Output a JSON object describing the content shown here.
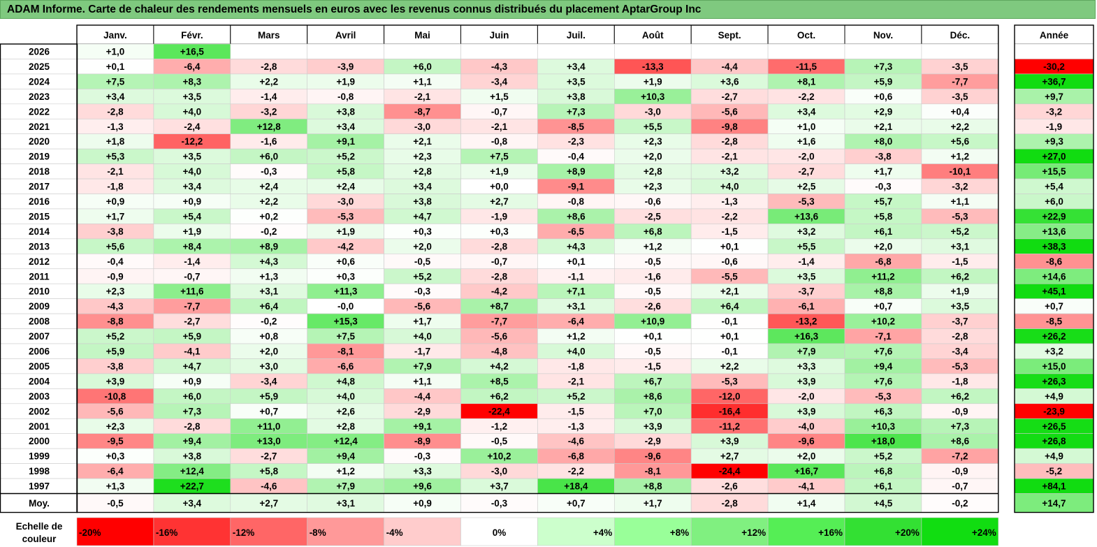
{
  "title": "ADAM Informe. Carte de chaleur des rendements mensuels en euros avec les revenus connus distribués du placement AptarGroup Inc",
  "chart_data": {
    "type": "heatmap",
    "months": [
      "Janv.",
      "Févr.",
      "Mars",
      "Avril",
      "Mai",
      "Juin",
      "Juil.",
      "Août",
      "Sept.",
      "Oct.",
      "Nov.",
      "Déc."
    ],
    "year_label": "Année",
    "avg_label": "Moy.",
    "rows": [
      {
        "year": "2026",
        "values": [
          1.0,
          16.5,
          null,
          null,
          null,
          null,
          null,
          null,
          null,
          null,
          null,
          null
        ],
        "labels": [
          "+1,0",
          "+16,5",
          "",
          "",
          "",
          "",
          "",
          "",
          "",
          "",
          "",
          ""
        ],
        "annual": null,
        "annual_label": ""
      },
      {
        "year": "2025",
        "values": [
          0.1,
          -6.4,
          -2.8,
          -3.9,
          6.0,
          -4.3,
          3.4,
          -13.3,
          -4.4,
          -11.5,
          7.3,
          -3.5
        ],
        "labels": [
          "+0,1",
          "-6,4",
          "-2,8",
          "-3,9",
          "+6,0",
          "-4,3",
          "+3,4",
          "-13,3",
          "-4,4",
          "-11,5",
          "+7,3",
          "-3,5"
        ],
        "annual": -30.2,
        "annual_label": "-30,2"
      },
      {
        "year": "2024",
        "values": [
          7.5,
          8.3,
          2.2,
          1.9,
          1.1,
          -3.4,
          3.5,
          1.9,
          3.6,
          8.1,
          5.9,
          -7.7
        ],
        "labels": [
          "+7,5",
          "+8,3",
          "+2,2",
          "+1,9",
          "+1,1",
          "-3,4",
          "+3,5",
          "+1,9",
          "+3,6",
          "+8,1",
          "+5,9",
          "-7,7"
        ],
        "annual": 36.7,
        "annual_label": "+36,7"
      },
      {
        "year": "2023",
        "values": [
          3.4,
          3.5,
          -1.4,
          -0.8,
          -2.1,
          1.5,
          3.8,
          10.3,
          -2.7,
          -2.2,
          0.6,
          -3.5
        ],
        "labels": [
          "+3,4",
          "+3,5",
          "-1,4",
          "-0,8",
          "-2,1",
          "+1,5",
          "+3,8",
          "+10,3",
          "-2,7",
          "-2,2",
          "+0,6",
          "-3,5"
        ],
        "annual": 9.7,
        "annual_label": "+9,7"
      },
      {
        "year": "2022",
        "values": [
          -2.8,
          4.0,
          -3.2,
          3.8,
          -8.7,
          -0.7,
          7.3,
          -3.0,
          -5.6,
          3.4,
          2.9,
          0.4
        ],
        "labels": [
          "-2,8",
          "+4,0",
          "-3,2",
          "+3,8",
          "-8,7",
          "-0,7",
          "+7,3",
          "-3,0",
          "-5,6",
          "+3,4",
          "+2,9",
          "+0,4"
        ],
        "annual": -3.2,
        "annual_label": "-3,2"
      },
      {
        "year": "2021",
        "values": [
          -1.3,
          -2.4,
          12.8,
          3.4,
          -3.0,
          -2.1,
          -8.5,
          5.5,
          -9.8,
          1.0,
          2.1,
          2.2
        ],
        "labels": [
          "-1,3",
          "-2,4",
          "+12,8",
          "+3,4",
          "-3,0",
          "-2,1",
          "-8,5",
          "+5,5",
          "-9,8",
          "+1,0",
          "+2,1",
          "+2,2"
        ],
        "annual": -1.9,
        "annual_label": "-1,9"
      },
      {
        "year": "2020",
        "values": [
          1.8,
          -12.2,
          -1.6,
          9.1,
          2.1,
          -0.8,
          -2.3,
          2.3,
          -2.8,
          1.6,
          8.0,
          5.6
        ],
        "labels": [
          "+1,8",
          "-12,2",
          "-1,6",
          "+9,1",
          "+2,1",
          "-0,8",
          "-2,3",
          "+2,3",
          "-2,8",
          "+1,6",
          "+8,0",
          "+5,6"
        ],
        "annual": 9.3,
        "annual_label": "+9,3"
      },
      {
        "year": "2019",
        "values": [
          5.3,
          3.5,
          6.0,
          5.2,
          2.3,
          7.5,
          -0.4,
          2.0,
          -2.1,
          -2.0,
          -3.8,
          1.2
        ],
        "labels": [
          "+5,3",
          "+3,5",
          "+6,0",
          "+5,2",
          "+2,3",
          "+7,5",
          "-0,4",
          "+2,0",
          "-2,1",
          "-2,0",
          "-3,8",
          "+1,2"
        ],
        "annual": 27.0,
        "annual_label": "+27,0"
      },
      {
        "year": "2018",
        "values": [
          -2.1,
          4.0,
          -0.3,
          5.8,
          2.8,
          1.9,
          8.9,
          2.8,
          3.2,
          -2.7,
          1.7,
          -10.1
        ],
        "labels": [
          "-2,1",
          "+4,0",
          "-0,3",
          "+5,8",
          "+2,8",
          "+1,9",
          "+8,9",
          "+2,8",
          "+3,2",
          "-2,7",
          "+1,7",
          "-10,1"
        ],
        "annual": 15.5,
        "annual_label": "+15,5"
      },
      {
        "year": "2017",
        "values": [
          -1.8,
          3.4,
          2.4,
          2.4,
          3.4,
          0.0,
          -9.1,
          2.3,
          4.0,
          2.5,
          -0.3,
          -3.2
        ],
        "labels": [
          "-1,8",
          "+3,4",
          "+2,4",
          "+2,4",
          "+3,4",
          "+0,0",
          "-9,1",
          "+2,3",
          "+4,0",
          "+2,5",
          "-0,3",
          "-3,2"
        ],
        "annual": 5.4,
        "annual_label": "+5,4"
      },
      {
        "year": "2016",
        "values": [
          0.9,
          0.9,
          2.2,
          -3.0,
          3.8,
          2.7,
          -0.8,
          -0.6,
          -1.3,
          -5.3,
          5.7,
          1.1
        ],
        "labels": [
          "+0,9",
          "+0,9",
          "+2,2",
          "-3,0",
          "+3,8",
          "+2,7",
          "-0,8",
          "-0,6",
          "-1,3",
          "-5,3",
          "+5,7",
          "+1,1"
        ],
        "annual": 6.0,
        "annual_label": "+6,0"
      },
      {
        "year": "2015",
        "values": [
          1.7,
          5.4,
          0.2,
          -5.3,
          4.7,
          -1.9,
          8.6,
          -2.5,
          -2.2,
          13.6,
          5.8,
          -5.3
        ],
        "labels": [
          "+1,7",
          "+5,4",
          "+0,2",
          "-5,3",
          "+4,7",
          "-1,9",
          "+8,6",
          "-2,5",
          "-2,2",
          "+13,6",
          "+5,8",
          "-5,3"
        ],
        "annual": 22.9,
        "annual_label": "+22,9"
      },
      {
        "year": "2014",
        "values": [
          -3.8,
          1.9,
          -0.2,
          1.9,
          0.3,
          0.3,
          -6.5,
          6.8,
          -1.5,
          3.2,
          6.1,
          5.2
        ],
        "labels": [
          "-3,8",
          "+1,9",
          "-0,2",
          "+1,9",
          "+0,3",
          "+0,3",
          "-6,5",
          "+6,8",
          "-1,5",
          "+3,2",
          "+6,1",
          "+5,2"
        ],
        "annual": 13.6,
        "annual_label": "+13,6"
      },
      {
        "year": "2013",
        "values": [
          5.6,
          8.4,
          8.9,
          -4.2,
          2.0,
          -2.8,
          4.3,
          1.2,
          0.1,
          5.5,
          2.0,
          3.1
        ],
        "labels": [
          "+5,6",
          "+8,4",
          "+8,9",
          "-4,2",
          "+2,0",
          "-2,8",
          "+4,3",
          "+1,2",
          "+0,1",
          "+5,5",
          "+2,0",
          "+3,1"
        ],
        "annual": 38.3,
        "annual_label": "+38,3"
      },
      {
        "year": "2012",
        "values": [
          -0.4,
          -1.4,
          4.3,
          0.6,
          -0.5,
          -0.7,
          0.1,
          -0.5,
          -0.6,
          -1.4,
          -6.8,
          -1.5
        ],
        "labels": [
          "-0,4",
          "-1,4",
          "+4,3",
          "+0,6",
          "-0,5",
          "-0,7",
          "+0,1",
          "-0,5",
          "-0,6",
          "-1,4",
          "-6,8",
          "-1,5"
        ],
        "annual": -8.6,
        "annual_label": "-8,6"
      },
      {
        "year": "2011",
        "values": [
          -0.9,
          -0.7,
          1.3,
          0.3,
          5.2,
          -2.8,
          -1.1,
          -1.6,
          -5.5,
          3.5,
          11.2,
          6.2
        ],
        "labels": [
          "-0,9",
          "-0,7",
          "+1,3",
          "+0,3",
          "+5,2",
          "-2,8",
          "-1,1",
          "-1,6",
          "-5,5",
          "+3,5",
          "+11,2",
          "+6,2"
        ],
        "annual": 14.6,
        "annual_label": "+14,6"
      },
      {
        "year": "2010",
        "values": [
          2.3,
          11.6,
          3.1,
          11.3,
          -0.3,
          -4.2,
          7.1,
          -0.5,
          2.1,
          -3.7,
          8.8,
          1.9
        ],
        "labels": [
          "+2,3",
          "+11,6",
          "+3,1",
          "+11,3",
          "-0,3",
          "-4,2",
          "+7,1",
          "-0,5",
          "+2,1",
          "-3,7",
          "+8,8",
          "+1,9"
        ],
        "annual": 45.1,
        "annual_label": "+45,1"
      },
      {
        "year": "2009",
        "values": [
          -4.3,
          -7.7,
          6.4,
          -0.0,
          -5.6,
          8.7,
          3.1,
          -2.6,
          6.4,
          -6.1,
          0.7,
          3.5
        ],
        "labels": [
          "-4,3",
          "-7,7",
          "+6,4",
          "-0,0",
          "-5,6",
          "+8,7",
          "+3,1",
          "-2,6",
          "+6,4",
          "-6,1",
          "+0,7",
          "+3,5"
        ],
        "annual": 0.7,
        "annual_label": "+0,7"
      },
      {
        "year": "2008",
        "values": [
          -8.8,
          -2.7,
          -0.2,
          15.3,
          1.7,
          -7.7,
          -6.4,
          10.9,
          -0.1,
          -13.2,
          10.2,
          -3.7
        ],
        "labels": [
          "-8,8",
          "-2,7",
          "-0,2",
          "+15,3",
          "+1,7",
          "-7,7",
          "-6,4",
          "+10,9",
          "-0,1",
          "-13,2",
          "+10,2",
          "-3,7"
        ],
        "annual": -8.5,
        "annual_label": "-8,5"
      },
      {
        "year": "2007",
        "values": [
          5.2,
          5.9,
          0.8,
          7.5,
          4.0,
          -5.6,
          1.2,
          0.1,
          0.1,
          16.3,
          -7.1,
          -2.8
        ],
        "labels": [
          "+5,2",
          "+5,9",
          "+0,8",
          "+7,5",
          "+4,0",
          "-5,6",
          "+1,2",
          "+0,1",
          "+0,1",
          "+16,3",
          "-7,1",
          "-2,8"
        ],
        "annual": 26.2,
        "annual_label": "+26,2"
      },
      {
        "year": "2006",
        "values": [
          5.9,
          -4.1,
          2.0,
          -8.1,
          -1.7,
          -4.8,
          4.0,
          -0.5,
          -0.1,
          7.9,
          7.6,
          -3.4
        ],
        "labels": [
          "+5,9",
          "-4,1",
          "+2,0",
          "-8,1",
          "-1,7",
          "-4,8",
          "+4,0",
          "-0,5",
          "-0,1",
          "+7,9",
          "+7,6",
          "-3,4"
        ],
        "annual": 3.2,
        "annual_label": "+3,2"
      },
      {
        "year": "2005",
        "values": [
          -3.8,
          4.7,
          3.0,
          -6.6,
          7.9,
          4.2,
          -1.8,
          -1.5,
          2.2,
          3.3,
          9.4,
          -5.3
        ],
        "labels": [
          "-3,8",
          "+4,7",
          "+3,0",
          "-6,6",
          "+7,9",
          "+4,2",
          "-1,8",
          "-1,5",
          "+2,2",
          "+3,3",
          "+9,4",
          "-5,3"
        ],
        "annual": 15.0,
        "annual_label": "+15,0"
      },
      {
        "year": "2004",
        "values": [
          3.9,
          0.9,
          -3.4,
          4.8,
          1.1,
          8.5,
          -2.1,
          6.7,
          -5.3,
          3.9,
          7.6,
          -1.8
        ],
        "labels": [
          "+3,9",
          "+0,9",
          "-3,4",
          "+4,8",
          "+1,1",
          "+8,5",
          "-2,1",
          "+6,7",
          "-5,3",
          "+3,9",
          "+7,6",
          "-1,8"
        ],
        "annual": 26.3,
        "annual_label": "+26,3"
      },
      {
        "year": "2003",
        "values": [
          -10.8,
          6.0,
          5.9,
          4.0,
          -4.4,
          6.2,
          5.2,
          8.6,
          -12.0,
          -2.0,
          -5.3,
          6.2
        ],
        "labels": [
          "-10,8",
          "+6,0",
          "+5,9",
          "+4,0",
          "-4,4",
          "+6,2",
          "+5,2",
          "+8,6",
          "-12,0",
          "-2,0",
          "-5,3",
          "+6,2"
        ],
        "annual": 4.9,
        "annual_label": "+4,9"
      },
      {
        "year": "2002",
        "values": [
          -5.6,
          7.3,
          0.7,
          2.6,
          -2.9,
          -22.4,
          -1.5,
          7.0,
          -16.4,
          3.9,
          6.3,
          -0.9
        ],
        "labels": [
          "-5,6",
          "+7,3",
          "+0,7",
          "+2,6",
          "-2,9",
          "-22,4",
          "-1,5",
          "+7,0",
          "-16,4",
          "+3,9",
          "+6,3",
          "-0,9"
        ],
        "annual": -23.9,
        "annual_label": "-23,9"
      },
      {
        "year": "2001",
        "values": [
          2.3,
          -2.8,
          11.0,
          2.8,
          9.1,
          -1.2,
          -1.3,
          3.9,
          -11.2,
          -4.0,
          10.3,
          7.3
        ],
        "labels": [
          "+2,3",
          "-2,8",
          "+11,0",
          "+2,8",
          "+9,1",
          "-1,2",
          "-1,3",
          "+3,9",
          "-11,2",
          "-4,0",
          "+10,3",
          "+7,3"
        ],
        "annual": 26.5,
        "annual_label": "+26,5"
      },
      {
        "year": "2000",
        "values": [
          -9.5,
          9.4,
          13.0,
          12.4,
          -8.9,
          -0.5,
          -4.6,
          -2.9,
          3.9,
          -9.6,
          18.0,
          8.6
        ],
        "labels": [
          "-9,5",
          "+9,4",
          "+13,0",
          "+12,4",
          "-8,9",
          "-0,5",
          "-4,6",
          "-2,9",
          "+3,9",
          "-9,6",
          "+18,0",
          "+8,6"
        ],
        "annual": 26.8,
        "annual_label": "+26,8"
      },
      {
        "year": "1999",
        "values": [
          0.3,
          3.8,
          -2.7,
          9.4,
          -0.3,
          10.2,
          -6.8,
          -9.6,
          2.7,
          2.0,
          5.2,
          -7.2
        ],
        "labels": [
          "+0,3",
          "+3,8",
          "-2,7",
          "+9,4",
          "-0,3",
          "+10,2",
          "-6,8",
          "-9,6",
          "+2,7",
          "+2,0",
          "+5,2",
          "-7,2"
        ],
        "annual": 4.9,
        "annual_label": "+4,9"
      },
      {
        "year": "1998",
        "values": [
          -6.4,
          12.4,
          5.8,
          1.2,
          3.3,
          -3.0,
          -2.2,
          -8.1,
          -24.4,
          16.7,
          6.8,
          -0.9
        ],
        "labels": [
          "-6,4",
          "+12,4",
          "+5,8",
          "+1,2",
          "+3,3",
          "-3,0",
          "-2,2",
          "-8,1",
          "-24,4",
          "+16,7",
          "+6,8",
          "-0,9"
        ],
        "annual": -5.2,
        "annual_label": "-5,2"
      },
      {
        "year": "1997",
        "values": [
          1.3,
          22.7,
          -4.6,
          7.9,
          9.6,
          3.7,
          18.4,
          8.8,
          -2.6,
          -4.1,
          6.1,
          -0.7
        ],
        "labels": [
          "+1,3",
          "+22,7",
          "-4,6",
          "+7,9",
          "+9,6",
          "+3,7",
          "+18,4",
          "+8,8",
          "-2,6",
          "-4,1",
          "+6,1",
          "-0,7"
        ],
        "annual": 84.1,
        "annual_label": "+84,1"
      }
    ],
    "average": {
      "values": [
        -0.5,
        3.4,
        2.7,
        3.1,
        0.9,
        -0.3,
        0.7,
        1.7,
        -2.8,
        1.4,
        4.5,
        -0.2
      ],
      "labels": [
        "-0,5",
        "+3,4",
        "+2,7",
        "+3,1",
        "+0,9",
        "-0,3",
        "+0,7",
        "+1,7",
        "-2,8",
        "+1,4",
        "+4,5",
        "-0,2"
      ],
      "annual": 14.7,
      "annual_label": "+14,7"
    },
    "color_scale": {
      "label_line1": "Echelle de",
      "label_line2": "couleur",
      "stops": [
        {
          "label": "-20%",
          "value": -20,
          "color": "#ff0000"
        },
        {
          "label": "-16%",
          "value": -16,
          "color": "#ff3333"
        },
        {
          "label": "-12%",
          "value": -12,
          "color": "#ff6666"
        },
        {
          "label": "-8%",
          "value": -8,
          "color": "#ff9999"
        },
        {
          "label": "-4%",
          "value": -4,
          "color": "#ffcccc"
        },
        {
          "label": "0%",
          "value": 0,
          "color": "#ffffff"
        },
        {
          "label": "+4%",
          "value": 4,
          "color": "#ccffcc"
        },
        {
          "label": "+8%",
          "value": 8,
          "color": "#99ff99"
        },
        {
          "label": "+12%",
          "value": 12,
          "color": "#80f080"
        },
        {
          "label": "+16%",
          "value": 16,
          "color": "#55ee55"
        },
        {
          "label": "+20%",
          "value": 20,
          "color": "#33e033"
        },
        {
          "label": "+24%",
          "value": 24,
          "color": "#11dd11"
        }
      ]
    }
  }
}
